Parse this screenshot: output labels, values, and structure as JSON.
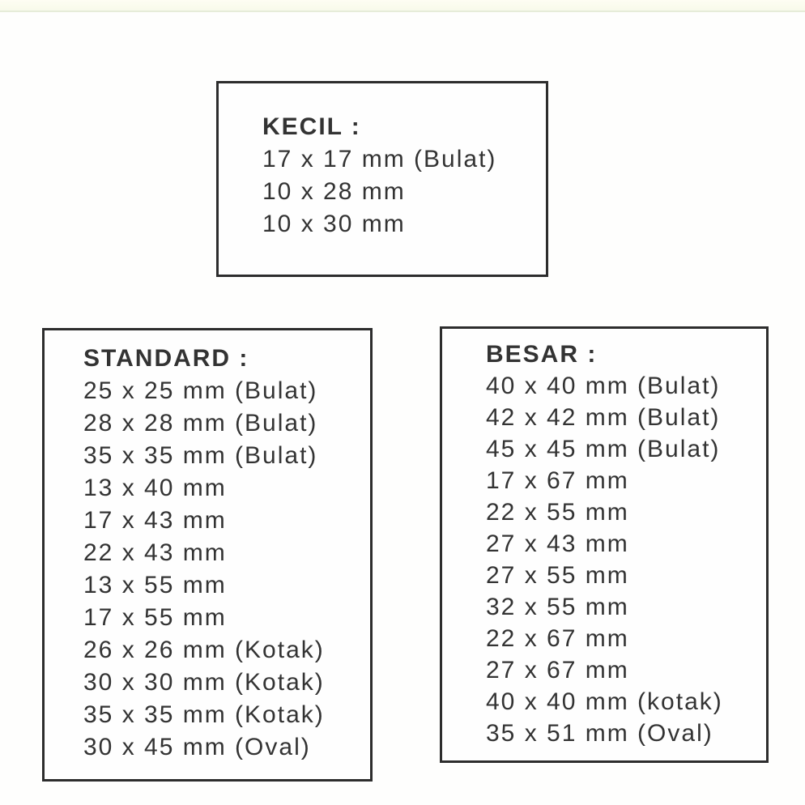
{
  "page": {
    "background_color": "#fefefd",
    "text_color": "#333333",
    "box_border_color": "#2d2d2d",
    "top_strip": {
      "band_color": "#fbfcee",
      "line_color": "#e6ecd9"
    }
  },
  "groups": [
    {
      "title": "KECIL :",
      "items": [
        "17 x 17 mm (Bulat)",
        "10 x 28 mm",
        "10 x 30 mm"
      ]
    },
    {
      "title": "STANDARD :",
      "items": [
        "25 x 25 mm (Bulat)",
        "28 x 28 mm (Bulat)",
        "35 x 35 mm (Bulat)",
        "13 x 40 mm",
        "17 x 43 mm",
        "22 x 43 mm",
        "13 x 55 mm",
        "17 x 55 mm",
        "26 x 26 mm (Kotak)",
        "30 x 30 mm (Kotak)",
        "35 x 35 mm (Kotak)",
        "30 x 45 mm (Oval)"
      ]
    },
    {
      "title": "BESAR :",
      "items": [
        "40 x 40 mm (Bulat)",
        "42 x 42 mm (Bulat)",
        "45 x 45 mm (Bulat)",
        "17 x 67 mm",
        "22 x 55 mm",
        "27 x 43 mm",
        "27 x 55 mm",
        "32 x 55 mm",
        "22 x 67 mm",
        "27 x 67 mm",
        "40 x 40 mm (kotak)",
        "35 x 51 mm (Oval)"
      ]
    }
  ]
}
